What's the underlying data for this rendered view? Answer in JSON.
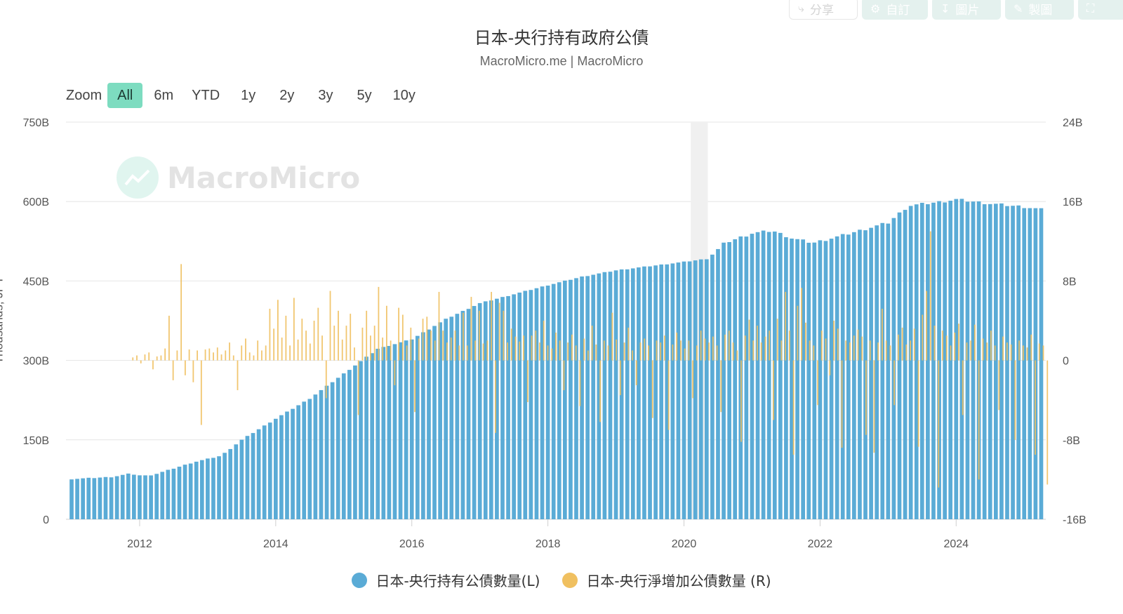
{
  "toolbar": {
    "share": "分享",
    "customize": "自訂",
    "image": "圖片",
    "draw": "製圖"
  },
  "zoom": {
    "label": "Zoom",
    "options": [
      "All",
      "6m",
      "YTD",
      "1y",
      "2y",
      "3y",
      "5y",
      "10y"
    ],
    "active": "All"
  },
  "watermark": "MacroMicro",
  "chart_data": {
    "type": "bar",
    "title": "日本-央行持有政府公債",
    "subtitle": "MacroMicro.me | MacroMicro",
    "ylabel_left": "Thousands, JPY",
    "y_left": {
      "min": 0,
      "max": 750,
      "ticks": [
        "0",
        "150B",
        "300B",
        "450B",
        "600B",
        "750B"
      ]
    },
    "y_right": {
      "min": -16,
      "max": 24,
      "ticks": [
        "-16B",
        "-8B",
        "0",
        "8B",
        "16B",
        "24B"
      ]
    },
    "x_range": [
      2011.0,
      2025.4
    ],
    "x_ticks": [
      "2012",
      "2014",
      "2016",
      "2018",
      "2020",
      "2022",
      "2024"
    ],
    "recession_shading": [
      2020.1,
      2020.35
    ],
    "grid": true,
    "legend_position": "bottom",
    "series": [
      {
        "name": "日本-央行持有公債數量(L)",
        "axis": "left",
        "color": "#5aabd6",
        "anchors": [
          [
            2011.0,
            76
          ],
          [
            2011.6,
            80
          ],
          [
            2011.85,
            86
          ],
          [
            2012.05,
            82
          ],
          [
            2012.2,
            84
          ],
          [
            2012.8,
            108
          ],
          [
            2013.2,
            120
          ],
          [
            2013.5,
            150
          ],
          [
            2014.0,
            190
          ],
          [
            2014.5,
            228
          ],
          [
            2015.0,
            275
          ],
          [
            2015.5,
            322
          ],
          [
            2016.0,
            340
          ],
          [
            2016.5,
            378
          ],
          [
            2017.0,
            408
          ],
          [
            2017.5,
            425
          ],
          [
            2018.0,
            442
          ],
          [
            2018.5,
            458
          ],
          [
            2019.0,
            470
          ],
          [
            2019.5,
            478
          ],
          [
            2020.0,
            486
          ],
          [
            2020.35,
            492
          ],
          [
            2020.6,
            522
          ],
          [
            2021.0,
            540
          ],
          [
            2021.3,
            545
          ],
          [
            2021.6,
            530
          ],
          [
            2021.9,
            522
          ],
          [
            2022.3,
            535
          ],
          [
            2022.8,
            553
          ],
          [
            2023.0,
            560
          ],
          [
            2023.3,
            592
          ],
          [
            2023.8,
            600
          ],
          [
            2024.0,
            604
          ],
          [
            2024.5,
            596
          ],
          [
            2025.0,
            590
          ],
          [
            2025.4,
            582
          ]
        ]
      },
      {
        "name": "日本-央行淨增加公債數量 (R)",
        "axis": "right",
        "color": "#f0c060",
        "values_note": "monthly net change, data units B JPY",
        "values": [
          0.3,
          0.5,
          -0.3,
          0.6,
          0.8,
          -0.9,
          0.4,
          0.5,
          1.2,
          4.5,
          -2.0,
          1.0,
          9.7,
          -1.5,
          1.1,
          -2.2,
          1.0,
          -6.5,
          1.1,
          1.2,
          0.8,
          1.3,
          0.6,
          1.0,
          1.8,
          0.5,
          -3.0,
          1.5,
          2.2,
          0.8,
          0.5,
          2.0,
          1.0,
          1.5,
          5.2,
          3.2,
          6.1,
          2.3,
          4.5,
          1.5,
          6.3,
          2.1,
          4.2,
          3.0,
          1.7,
          4.0,
          5.3,
          2.5,
          -3.8,
          7.0,
          3.5,
          5.0,
          2.1,
          3.5,
          4.7,
          1.3,
          -5.5,
          3.3,
          5.0,
          2.5,
          3.5,
          7.4,
          2.3,
          5.5,
          2.0,
          -2.5,
          5.3,
          4.6,
          1.5,
          3.3,
          -5.2,
          2.2,
          4.2,
          4.4,
          3.0,
          2.0,
          6.9,
          3.0,
          1.8,
          2.3,
          3.0,
          1.5,
          4.8,
          1.5,
          6.4,
          2.0,
          5.0,
          1.7,
          2.0,
          6.9,
          -7.3,
          5.8,
          5.0,
          1.8,
          3.2,
          2.4,
          1.9,
          2.5,
          -4.2,
          2.5,
          3.0,
          1.8,
          4.0,
          1.5,
          1.2,
          2.8,
          2.0,
          -3.0,
          1.8,
          2.6,
          1.5,
          -4.6,
          2.2,
          1.0,
          3.5,
          1.6,
          -6.2,
          2.0,
          1.5,
          4.8,
          2.1,
          -3.5,
          1.8,
          3.3,
          1.0,
          -2.5,
          1.8,
          2.2,
          1.5,
          -5.8,
          2.0,
          1.8,
          2.5,
          -7.0,
          1.6,
          2.8,
          2.0,
          1.2,
          2.0,
          -3.8,
          1.5,
          3.0,
          2.2,
          1.8,
          2.4,
          1.5,
          -5.2,
          2.6,
          3.0,
          1.8,
          1.0,
          -8.2,
          2.5,
          4.1,
          2.0,
          3.5,
          1.8,
          2.4,
          3.0,
          -6.0,
          4.2,
          2.0,
          6.9,
          3.0,
          -9.5,
          5.5,
          7.3,
          3.8,
          2.0,
          1.5,
          -4.5,
          3.0,
          2.2,
          -1.5,
          4.0,
          3.2,
          -8.8,
          2.0,
          1.8,
          2.5,
          3.1,
          2.4,
          -7.5,
          2.0,
          -9.3,
          1.8,
          5.2,
          2.0,
          1.5,
          -4.5,
          2.6,
          3.3,
          1.6,
          2.0,
          3.2,
          -8.7,
          4.6,
          7.0,
          13.0,
          3.5,
          -12.8,
          3.0,
          2.5,
          1.5,
          2.8,
          3.7,
          -5.5,
          1.8,
          2.0,
          3.6,
          -12.0,
          2.2,
          1.8,
          3.0,
          1.5,
          -5.0,
          2.4,
          1.8,
          1.6,
          -8.0,
          2.0,
          1.5,
          1.3,
          2.6,
          -9.5,
          1.7,
          1.5,
          -12.5
        ]
      }
    ]
  }
}
